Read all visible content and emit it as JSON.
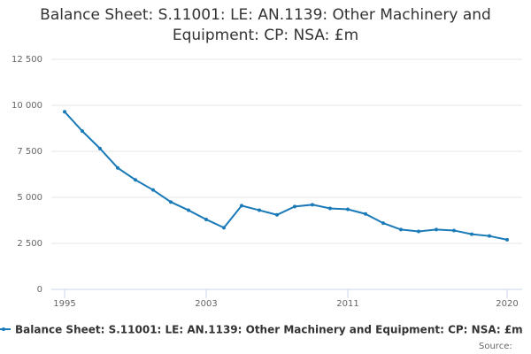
{
  "chart_data": {
    "type": "line",
    "title": "Balance Sheet: S.11001: LE: AN.1139: Other Machinery and Equipment: CP: NSA: £m",
    "source_label": "Source:",
    "x": [
      1995,
      1996,
      1997,
      1998,
      1999,
      2000,
      2001,
      2002,
      2003,
      2004,
      2005,
      2006,
      2007,
      2008,
      2009,
      2010,
      2011,
      2012,
      2013,
      2014,
      2015,
      2016,
      2017,
      2018,
      2019,
      2020
    ],
    "series": [
      {
        "name": "Balance Sheet: S.11001: LE: AN.1139: Other Machinery and Equipment: CP: NSA: £m",
        "color": "#1a7ab8",
        "values": [
          9650,
          8600,
          7650,
          6600,
          5950,
          5400,
          4750,
          4300,
          3800,
          3350,
          4550,
          4300,
          4050,
          4500,
          4600,
          4400,
          4350,
          4100,
          3600,
          3250,
          3150,
          3250,
          3200,
          3000,
          2900,
          2700
        ]
      }
    ],
    "xlim": [
      1995,
      2020
    ],
    "xticks": [
      1995,
      2003,
      2011,
      2020
    ],
    "ylim": [
      0,
      12500
    ],
    "yticks": [
      0,
      {
        "value": 2500,
        "label": "2 500"
      },
      {
        "value": 5000,
        "label": "5 000"
      },
      {
        "value": 7500,
        "label": "7 500"
      },
      {
        "value": 10000,
        "label": "10 000"
      },
      {
        "value": 12500,
        "label": "12 500"
      }
    ],
    "grid": true,
    "legend": "bottom"
  }
}
